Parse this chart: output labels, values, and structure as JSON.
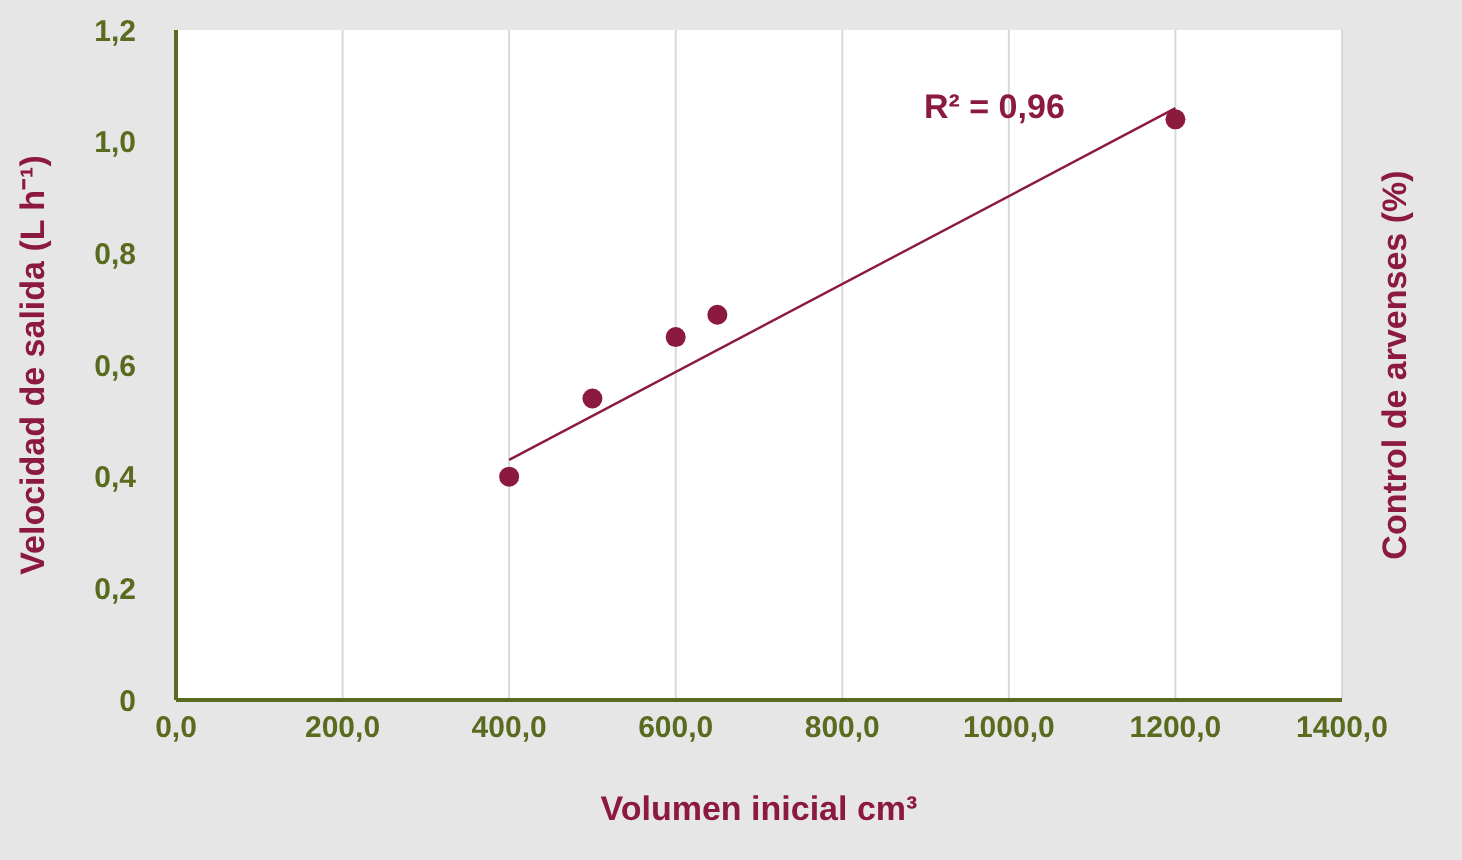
{
  "chart_data": {
    "type": "scatter",
    "xlabel": "Volumen inicial cm³",
    "ylabel": "Velocidad de salida (L h⁻¹)",
    "y2label": "Control de arvenses (%)",
    "xlim": [
      0,
      1400
    ],
    "xticks": [
      {
        "value": 0,
        "label": "0,0"
      },
      {
        "value": 200,
        "label": "200,0"
      },
      {
        "value": 400,
        "label": "400,0"
      },
      {
        "value": 600,
        "label": "600,0"
      },
      {
        "value": 800,
        "label": "800,0"
      },
      {
        "value": 1000,
        "label": "1000,0"
      },
      {
        "value": 1200,
        "label": "1200,0"
      },
      {
        "value": 1400,
        "label": "1400,0"
      }
    ],
    "ylim": [
      0,
      1.2
    ],
    "yticks": [
      0,
      {
        "value": 0.2,
        "label": "0,2"
      },
      {
        "value": 0.4,
        "label": "0,4"
      },
      {
        "value": 0.6,
        "label": "0,6"
      },
      {
        "value": 0.8,
        "label": "0,8"
      },
      {
        "value": 1,
        "label": "1,0"
      },
      {
        "value": 1.2,
        "label": "1,2"
      }
    ],
    "grid": true,
    "series": [
      {
        "marker": "circle",
        "color": "#8b1a3e",
        "x": [
          400,
          500,
          600,
          650,
          1200
        ],
        "values": [
          0.4,
          0.54,
          0.65,
          0.69,
          1.04
        ]
      },
      {
        "type": "line",
        "marker": "none",
        "color": "#8b1a3e",
        "x": [
          400,
          1200
        ],
        "values": [
          0.43,
          1.06
        ]
      }
    ],
    "annotations": [
      "R² = 0,96"
    ]
  }
}
